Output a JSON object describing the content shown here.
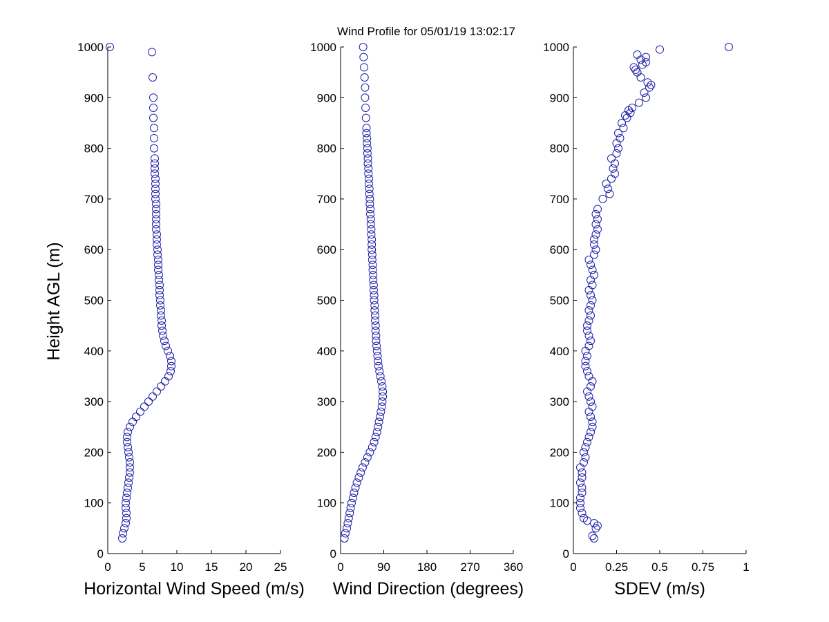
{
  "figure": {
    "title": "Wind Profile for  05/01/19 13:02:17",
    "marker_color": "#1c1ca8",
    "background": "#ffffff"
  },
  "chart_data": [
    {
      "type": "scatter",
      "id": "speed",
      "title": "",
      "xlabel": "Horizontal Wind Speed (m/s)",
      "ylabel": "Height AGL (m)",
      "xlim": [
        0,
        25
      ],
      "ylim": [
        0,
        1000
      ],
      "xticks": [
        0,
        5,
        10,
        15,
        20,
        25
      ],
      "xtick_labels": [
        "0",
        "5",
        "10",
        "15",
        "20",
        "25"
      ],
      "yticks": [
        0,
        100,
        200,
        300,
        400,
        500,
        600,
        700,
        800,
        900,
        1000
      ],
      "ytick_labels": [
        "0",
        "100",
        "200",
        "300",
        "400",
        "500",
        "600",
        "700",
        "800",
        "900",
        "1000"
      ],
      "grid": false,
      "marker": "open-circle",
      "series": [
        {
          "x": [
            2.1,
            2.2,
            2.4,
            2.6,
            2.7,
            2.7,
            2.6,
            2.6,
            2.7,
            2.8,
            2.9,
            3.0,
            3.1,
            3.2,
            3.2,
            3.2,
            3.1,
            3.0,
            2.9,
            2.8,
            2.8,
            2.9,
            3.2,
            3.6,
            4.1,
            4.7,
            5.3,
            5.9,
            6.5,
            7.1,
            7.7,
            8.3,
            8.8,
            9.1,
            9.2,
            9.2,
            9.0,
            8.7,
            8.4,
            8.2,
            8.0,
            7.9,
            7.8,
            7.8,
            7.7,
            7.7,
            7.6,
            7.6,
            7.5,
            7.5,
            7.5,
            7.4,
            7.4,
            7.3,
            7.3,
            7.3,
            7.2,
            7.2,
            7.1,
            7.1,
            7.1,
            7.0,
            7.0,
            7.0,
            7.0,
            7.0,
            7.0,
            6.9,
            6.9,
            6.9,
            6.9,
            6.9,
            6.8,
            6.8,
            6.8,
            6.8,
            6.7,
            6.7,
            6.7,
            6.6,
            6.6,
            6.6,
            6.5,
            6.4,
            0.3
          ],
          "y": [
            30,
            40,
            50,
            60,
            70,
            80,
            90,
            100,
            110,
            120,
            130,
            140,
            150,
            160,
            170,
            180,
            190,
            200,
            210,
            220,
            230,
            240,
            250,
            260,
            270,
            280,
            290,
            300,
            310,
            320,
            330,
            340,
            350,
            360,
            370,
            380,
            390,
            400,
            410,
            420,
            430,
            440,
            450,
            460,
            470,
            480,
            490,
            500,
            510,
            520,
            530,
            540,
            550,
            560,
            570,
            580,
            590,
            600,
            610,
            620,
            630,
            640,
            650,
            660,
            670,
            680,
            690,
            700,
            710,
            720,
            730,
            740,
            750,
            760,
            770,
            780,
            800,
            820,
            840,
            860,
            880,
            900,
            940,
            990,
            1000
          ]
        }
      ]
    },
    {
      "type": "scatter",
      "id": "direction",
      "title": "",
      "xlabel": "Wind Direction (degrees)",
      "ylabel": "",
      "xlim": [
        0,
        360
      ],
      "ylim": [
        0,
        1000
      ],
      "xticks": [
        0,
        90,
        180,
        270,
        360
      ],
      "xtick_labels": [
        "0",
        "90",
        "180",
        "270",
        "360"
      ],
      "yticks": [
        0,
        100,
        200,
        300,
        400,
        500,
        600,
        700,
        800,
        900,
        1000
      ],
      "ytick_labels": [
        "0",
        "100",
        "200",
        "300",
        "400",
        "500",
        "600",
        "700",
        "800",
        "900",
        "1000"
      ],
      "grid": false,
      "marker": "open-circle",
      "series": [
        {
          "x": [
            8,
            10,
            13,
            15,
            17,
            19,
            21,
            23,
            26,
            28,
            31,
            34,
            38,
            42,
            46,
            51,
            56,
            61,
            66,
            70,
            73,
            76,
            78,
            80,
            82,
            84,
            86,
            87,
            88,
            88,
            87,
            85,
            83,
            81,
            79,
            78,
            77,
            76,
            75,
            74,
            74,
            73,
            73,
            72,
            72,
            71,
            71,
            70,
            70,
            69,
            69,
            68,
            68,
            67,
            67,
            66,
            66,
            65,
            65,
            65,
            64,
            64,
            63,
            63,
            62,
            62,
            61,
            61,
            60,
            60,
            59,
            59,
            58,
            58,
            57,
            57,
            56,
            56,
            55,
            55,
            54,
            54,
            53,
            52,
            51,
            51,
            50,
            49,
            48,
            47
          ],
          "y": [
            30,
            40,
            50,
            60,
            70,
            80,
            90,
            100,
            110,
            120,
            130,
            140,
            150,
            160,
            170,
            180,
            190,
            200,
            210,
            220,
            230,
            240,
            250,
            260,
            270,
            280,
            290,
            300,
            310,
            320,
            330,
            340,
            350,
            360,
            370,
            380,
            390,
            400,
            410,
            420,
            430,
            440,
            450,
            460,
            470,
            480,
            490,
            500,
            510,
            520,
            530,
            540,
            550,
            560,
            570,
            580,
            590,
            600,
            610,
            620,
            630,
            640,
            650,
            660,
            670,
            680,
            690,
            700,
            710,
            720,
            730,
            740,
            750,
            760,
            770,
            780,
            790,
            800,
            810,
            820,
            830,
            840,
            860,
            880,
            900,
            920,
            940,
            960,
            980,
            1000
          ]
        }
      ]
    },
    {
      "type": "scatter",
      "id": "sdev",
      "title": "",
      "xlabel": "SDEV  (m/s)",
      "ylabel": "",
      "xlim": [
        0,
        1
      ],
      "ylim": [
        0,
        1000
      ],
      "xticks": [
        0,
        0.25,
        0.5,
        0.75,
        1
      ],
      "xtick_labels": [
        "0",
        "0.25",
        "0.5",
        "0.75",
        "1"
      ],
      "yticks": [
        0,
        100,
        200,
        300,
        400,
        500,
        600,
        700,
        800,
        900,
        1000
      ],
      "ytick_labels": [
        "0",
        "100",
        "200",
        "300",
        "400",
        "500",
        "600",
        "700",
        "800",
        "900",
        "1000"
      ],
      "grid": false,
      "marker": "open-circle",
      "series": [
        {
          "x": [
            0.12,
            0.11,
            0.13,
            0.14,
            0.12,
            0.08,
            0.06,
            0.05,
            0.04,
            0.04,
            0.04,
            0.05,
            0.05,
            0.04,
            0.05,
            0.05,
            0.04,
            0.06,
            0.07,
            0.06,
            0.07,
            0.08,
            0.09,
            0.1,
            0.11,
            0.11,
            0.1,
            0.09,
            0.11,
            0.1,
            0.09,
            0.08,
            0.1,
            0.11,
            0.09,
            0.08,
            0.07,
            0.07,
            0.08,
            0.07,
            0.09,
            0.1,
            0.09,
            0.08,
            0.08,
            0.09,
            0.1,
            0.09,
            0.1,
            0.11,
            0.1,
            0.09,
            0.11,
            0.1,
            0.12,
            0.11,
            0.1,
            0.09,
            0.12,
            0.13,
            0.12,
            0.12,
            0.13,
            0.14,
            0.13,
            0.14,
            0.13,
            0.14,
            0.17,
            0.21,
            0.2,
            0.19,
            0.22,
            0.24,
            0.23,
            0.24,
            0.22,
            0.25,
            0.26,
            0.25,
            0.27,
            0.26,
            0.29,
            0.28,
            0.31,
            0.3,
            0.33,
            0.32,
            0.34,
            0.38,
            0.42,
            0.41,
            0.44,
            0.45,
            0.43,
            0.39,
            0.37,
            0.36,
            0.35,
            0.4,
            0.42,
            0.39,
            0.42,
            0.37,
            0.5,
            0.9
          ],
          "y": [
            30,
            35,
            50,
            55,
            60,
            65,
            70,
            80,
            90,
            100,
            110,
            120,
            130,
            140,
            150,
            160,
            170,
            180,
            190,
            200,
            210,
            220,
            230,
            240,
            250,
            260,
            270,
            280,
            290,
            300,
            310,
            320,
            330,
            340,
            350,
            360,
            370,
            380,
            390,
            400,
            410,
            420,
            430,
            440,
            450,
            460,
            470,
            480,
            490,
            500,
            510,
            520,
            530,
            540,
            550,
            560,
            570,
            580,
            590,
            600,
            610,
            620,
            630,
            640,
            650,
            660,
            670,
            680,
            700,
            710,
            720,
            730,
            740,
            750,
            760,
            770,
            780,
            790,
            800,
            810,
            820,
            830,
            840,
            850,
            860,
            865,
            870,
            875,
            880,
            890,
            900,
            910,
            920,
            925,
            930,
            940,
            950,
            955,
            960,
            965,
            970,
            975,
            980,
            985,
            995,
            1000
          ]
        }
      ]
    }
  ]
}
